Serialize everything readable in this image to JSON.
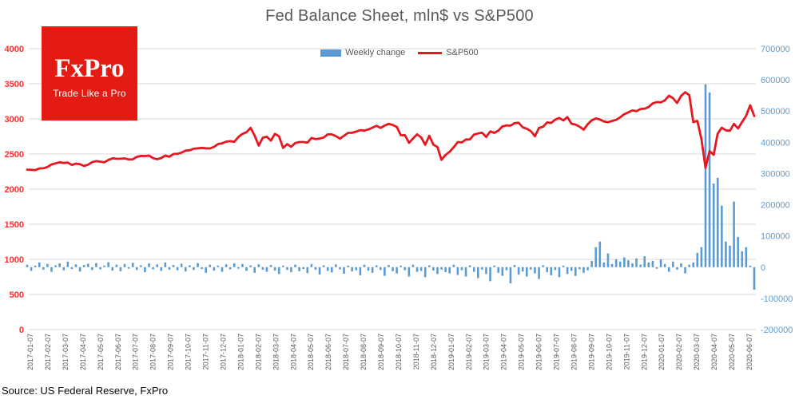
{
  "title": "Fed Balance Sheet, mln$ vs S&P500",
  "legend": {
    "weekly_change": "Weekly change",
    "sp500": "S&P500"
  },
  "logo": {
    "name": "FxPro",
    "tagline": "Trade Like a Pro"
  },
  "source": "Source: US Federal Reserve, FxPro",
  "colors": {
    "line_red": "#e8171f",
    "bar_blue": "#5b9bd5",
    "left_axis_labels": "#ff2e2e",
    "right_axis_labels": "#5b9bd5",
    "x_axis_labels": "#595959",
    "grid": "#d9d9d9",
    "title_gray": "#595959",
    "logo_bg": "#e41b13"
  },
  "chart_data": {
    "type": "combo",
    "title": "Fed Balance Sheet, mln$ vs S&P500",
    "grid": true,
    "legend_position": "top",
    "x_is_weekly": true,
    "x_labels": [
      "2017-01-07",
      "2017-02-07",
      "2017-03-07",
      "2017-04-07",
      "2017-05-07",
      "2017-06-07",
      "2017-07-07",
      "2017-08-07",
      "2017-09-07",
      "2017-10-07",
      "2017-11-07",
      "2017-12-07",
      "2018-01-07",
      "2018-02-07",
      "2018-03-07",
      "2018-04-07",
      "2018-05-07",
      "2018-06-07",
      "2018-07-07",
      "2018-08-07",
      "2018-09-07",
      "2018-10-07",
      "2018-11-07",
      "2018-12-07",
      "2019-01-07",
      "2019-02-07",
      "2019-03-07",
      "2019-04-07",
      "2019-05-07",
      "2019-06-07",
      "2019-07-07",
      "2019-08-07",
      "2019-09-07",
      "2019-10-07",
      "2019-11-07",
      "2019-12-07",
      "2020-01-07",
      "2020-02-07",
      "2020-03-07",
      "2020-04-07",
      "2020-05-07",
      "2020-06-07"
    ],
    "left_axis": {
      "ticks": [
        0,
        500,
        1000,
        1500,
        2000,
        2500,
        3000,
        3500,
        4000
      ],
      "range": [
        0,
        4000
      ]
    },
    "right_axis": {
      "ticks": [
        -200000,
        -100000,
        0,
        100000,
        200000,
        300000,
        400000,
        500000,
        600000,
        700000
      ],
      "range": [
        -200000,
        700000
      ]
    },
    "series": [
      {
        "name": "Weekly change",
        "type": "bar",
        "axis": "right",
        "color": "#5b9bd5",
        "values": [
          8000,
          -12000,
          5000,
          15000,
          -8000,
          10000,
          -15000,
          6000,
          12000,
          -10000,
          18000,
          -6000,
          9000,
          -14000,
          7000,
          11000,
          -9000,
          13000,
          -7000,
          5000,
          16000,
          -11000,
          8000,
          -13000,
          10000,
          -5000,
          14000,
          -9000,
          6000,
          -16000,
          12000,
          -7000,
          9000,
          -12000,
          15000,
          -8000,
          7000,
          -10000,
          11000,
          -14000,
          6000,
          -9000,
          13000,
          -6000,
          -18000,
          8000,
          -11000,
          5000,
          -15000,
          9000,
          -7000,
          12000,
          -5000,
          10000,
          -12000,
          6000,
          -18000,
          9000,
          -8000,
          -15000,
          7000,
          -11000,
          -22000,
          5000,
          -9000,
          -16000,
          8000,
          -13000,
          -6000,
          -19000,
          10000,
          -8000,
          -24000,
          6000,
          -12000,
          -17000,
          9000,
          -7000,
          -21000,
          5000,
          -14000,
          -10000,
          -26000,
          8000,
          -11000,
          -18000,
          6000,
          -9000,
          -28000,
          7000,
          -13000,
          -20000,
          5000,
          -10000,
          -30000,
          8000,
          -15000,
          -12000,
          -32000,
          6000,
          -11000,
          -22000,
          -8000,
          -16000,
          -20000,
          8000,
          -25000,
          -10000,
          -30000,
          6000,
          -15000,
          -35000,
          -8000,
          -22000,
          -45000,
          5000,
          -18000,
          -28000,
          -10000,
          -52000,
          7000,
          -24000,
          -14000,
          -30000,
          -8000,
          -20000,
          -38000,
          6000,
          -16000,
          -26000,
          -9000,
          -32000,
          5000,
          -22000,
          -12000,
          -28000,
          -7000,
          -18000,
          -10000,
          20000,
          64000,
          82000,
          15000,
          44000,
          10000,
          25000,
          18000,
          31000,
          22000,
          12000,
          28000,
          8000,
          35000,
          15000,
          20000,
          -5000,
          25000,
          10000,
          -15000,
          18000,
          -8000,
          12000,
          -20000,
          8000,
          15000,
          46000,
          64000,
          586000,
          560000,
          268000,
          286000,
          197000,
          82000,
          69000,
          210000,
          97000,
          51000,
          64000,
          5000,
          -72000
        ]
      },
      {
        "name": "S&P500",
        "type": "line",
        "axis": "left",
        "color": "#e8171f",
        "values": [
          2277,
          2275,
          2271,
          2295,
          2297,
          2316,
          2351,
          2367,
          2383,
          2373,
          2378,
          2344,
          2363,
          2355,
          2329,
          2349,
          2384,
          2399,
          2391,
          2382,
          2416,
          2439,
          2432,
          2433,
          2438,
          2423,
          2425,
          2459,
          2473,
          2472,
          2477,
          2441,
          2426,
          2443,
          2477,
          2461,
          2500,
          2502,
          2519,
          2549,
          2553,
          2575,
          2581,
          2588,
          2582,
          2579,
          2602,
          2642,
          2652,
          2676,
          2683,
          2674,
          2743,
          2786,
          2810,
          2873,
          2762,
          2620,
          2732,
          2747,
          2691,
          2787,
          2752,
          2588,
          2641,
          2604,
          2656,
          2670,
          2670,
          2663,
          2728,
          2713,
          2721,
          2735,
          2779,
          2780,
          2755,
          2718,
          2760,
          2801,
          2802,
          2819,
          2840,
          2833,
          2850,
          2875,
          2902,
          2872,
          2905,
          2930,
          2914,
          2886,
          2767,
          2768,
          2659,
          2723,
          2781,
          2736,
          2632,
          2760,
          2633,
          2600,
          2417,
          2486,
          2532,
          2596,
          2671,
          2665,
          2707,
          2708,
          2776,
          2793,
          2803,
          2743,
          2822,
          2801,
          2834,
          2893,
          2907,
          2905,
          2940,
          2946,
          2881,
          2860,
          2826,
          2752,
          2873,
          2887,
          2950,
          2942,
          2990,
          3014,
          2977,
          3026,
          2932,
          2919,
          2889,
          2847,
          2926,
          2979,
          3007,
          2992,
          2962,
          2952,
          2970,
          2986,
          3023,
          3067,
          3093,
          3120,
          3110,
          3141,
          3146,
          3169,
          3221,
          3240,
          3235,
          3265,
          3330,
          3295,
          3226,
          3328,
          3380,
          3338,
          2954,
          2972,
          2711,
          2305,
          2541,
          2489,
          2790,
          2875,
          2837,
          2831,
          2930,
          2864,
          2955,
          3044,
          3194,
          3041
        ]
      }
    ]
  }
}
